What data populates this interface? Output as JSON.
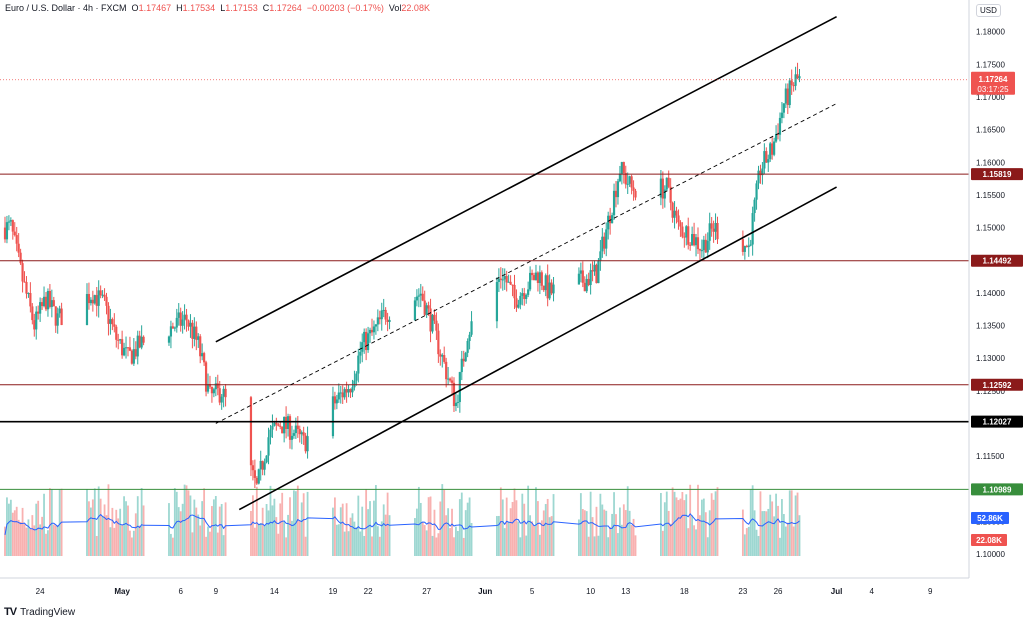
{
  "legend": {
    "symbol": "Euro / U.S. Dollar · 4h · FXCM",
    "o_label": "O",
    "o_value": "1.17467",
    "h_label": "H",
    "h_value": "1.17534",
    "l_label": "L",
    "l_value": "1.17153",
    "c_label": "C",
    "c_value": "1.17264",
    "change": "−0.00203 (−0.17%)",
    "vol_label": "Vol",
    "vol_value": "22.08K"
  },
  "currency": "USD",
  "brand": "TradingView",
  "colors": {
    "up": "#26a69a",
    "down": "#ef5350",
    "channel": "#000000",
    "resistance": "#8b1a1a",
    "support_green": "#388e3c",
    "volume_ma": "#2962ff"
  },
  "chart_data": {
    "type": "candlestick",
    "timeframe": "4h",
    "ylim": [
      1.1,
      1.1821
    ],
    "y_ticks": [
      1.18,
      1.175,
      1.17,
      1.165,
      1.16,
      1.155,
      1.15,
      1.145,
      1.14,
      1.135,
      1.13,
      1.125,
      1.12,
      1.115,
      1.11,
      1.105,
      1.1
    ],
    "y_tick_labels": [
      "1.18000",
      "1.17500",
      "1.17000",
      "1.16500",
      "1.16000",
      "1.15500",
      "1.15000",
      "1.14500",
      "1.14000",
      "1.13500",
      "1.13000",
      "1.12500",
      "1.12000",
      "1.11500",
      "1.11000",
      "1.10500",
      "1.10000"
    ],
    "x_tick_labels": [
      "24",
      "May",
      "6",
      "9",
      "14",
      "19",
      "22",
      "27",
      "Jun",
      "5",
      "10",
      "13",
      "18",
      "23",
      "26",
      "Jul",
      "4",
      "9"
    ],
    "x_tick_dates": [
      "2025-04-24",
      "2025-05-01",
      "2025-05-06",
      "2025-05-09",
      "2025-05-14",
      "2025-05-19",
      "2025-05-22",
      "2025-05-27",
      "2025-06-01",
      "2025-06-05",
      "2025-06-10",
      "2025-06-13",
      "2025-06-18",
      "2025-06-23",
      "2025-06-26",
      "2025-07-01",
      "2025-07-04",
      "2025-07-09"
    ],
    "price_path": [
      [
        "2025-04-21",
        1.15
      ],
      [
        "2025-04-22",
        1.142
      ],
      [
        "2025-04-23",
        1.135
      ],
      [
        "2025-04-24",
        1.139
      ],
      [
        "2025-04-25",
        1.136
      ],
      [
        "2025-04-28",
        1.14
      ],
      [
        "2025-04-29",
        1.138
      ],
      [
        "2025-04-30",
        1.133
      ],
      [
        "2025-05-01",
        1.13
      ],
      [
        "2025-05-02",
        1.132
      ],
      [
        "2025-05-05",
        1.135
      ],
      [
        "2025-05-06",
        1.136
      ],
      [
        "2025-05-07",
        1.132
      ],
      [
        "2025-05-08",
        1.124
      ],
      [
        "2025-05-09",
        1.125
      ],
      [
        "2025-05-12",
        1.11
      ],
      [
        "2025-05-13",
        1.118
      ],
      [
        "2025-05-14",
        1.12
      ],
      [
        "2025-05-15",
        1.119
      ],
      [
        "2025-05-16",
        1.117
      ],
      [
        "2025-05-19",
        1.124
      ],
      [
        "2025-05-20",
        1.126
      ],
      [
        "2025-05-21",
        1.132
      ],
      [
        "2025-05-22",
        1.134
      ],
      [
        "2025-05-23",
        1.137
      ],
      [
        "2025-05-26",
        1.14
      ],
      [
        "2025-05-27",
        1.135
      ],
      [
        "2025-05-28",
        1.129
      ],
      [
        "2025-05-29",
        1.123
      ],
      [
        "2025-05-30",
        1.134
      ],
      [
        "2025-06-02",
        1.143
      ],
      [
        "2025-06-03",
        1.139
      ],
      [
        "2025-06-04",
        1.141
      ],
      [
        "2025-06-05",
        1.143
      ],
      [
        "2025-06-06",
        1.14
      ],
      [
        "2025-06-09",
        1.142
      ],
      [
        "2025-06-10",
        1.143
      ],
      [
        "2025-06-11",
        1.151
      ],
      [
        "2025-06-12",
        1.159
      ],
      [
        "2025-06-13",
        1.156
      ],
      [
        "2025-06-16",
        1.156
      ],
      [
        "2025-06-17",
        1.15
      ],
      [
        "2025-06-18",
        1.149
      ],
      [
        "2025-06-19",
        1.147
      ],
      [
        "2025-06-20",
        1.15
      ],
      [
        "2025-06-23",
        1.147
      ],
      [
        "2025-06-24",
        1.159
      ],
      [
        "2025-06-25",
        1.162
      ],
      [
        "2025-06-26",
        1.169
      ],
      [
        "2025-06-27",
        1.1726
      ]
    ],
    "overlays": {
      "upper_channel_from": [
        "2025-05-09",
        1.1325
      ],
      "upper_channel_to": [
        "2025-07-01",
        1.1823
      ],
      "mid_channel_from": [
        "2025-05-09",
        1.12
      ],
      "mid_channel_to": [
        "2025-07-01",
        1.169
      ],
      "lower_channel_from": [
        "2025-05-11",
        1.1068
      ],
      "lower_channel_to": [
        "2025-07-01",
        1.1562
      ],
      "levels": [
        {
          "value": 1.15819,
          "label": "1.15819",
          "style": "resistance"
        },
        {
          "value": 1.14492,
          "label": "1.14492",
          "style": "resistance"
        },
        {
          "value": 1.12592,
          "label": "1.12592",
          "style": "resistance"
        },
        {
          "value": 1.12027,
          "label": "1.12027",
          "style": "black"
        },
        {
          "value": 1.10989,
          "label": "1.10989",
          "style": "green"
        }
      ]
    },
    "last_price": {
      "value": 1.17264,
      "label": "1.17264",
      "countdown": "03:17:25"
    },
    "volume": {
      "last_label": "22.08K",
      "ma_label": "52.86K"
    }
  }
}
